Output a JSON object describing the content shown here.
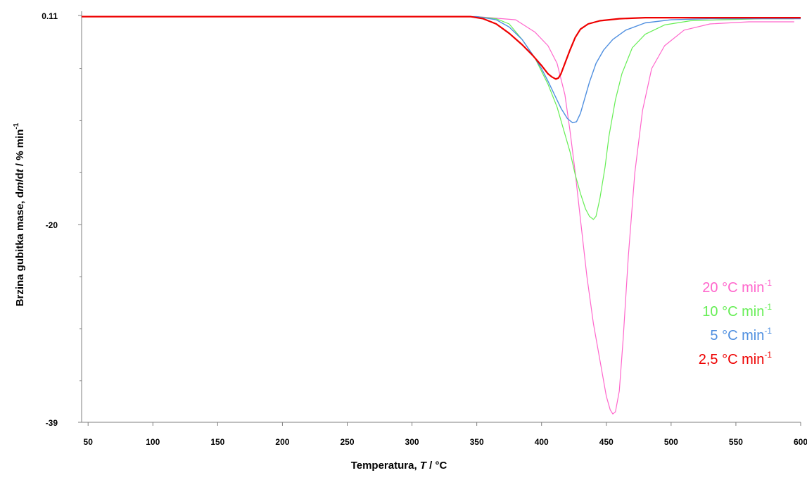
{
  "chart_data": {
    "type": "line",
    "xlabel": {
      "prefix": "Temperatura, ",
      "italic": "T",
      "suffix": " / °C"
    },
    "ylabel": {
      "prefix": "Brzina gubitka mase, d",
      "italic": "m",
      "middle": "/d",
      "italic2": "t",
      "suffix": " / % min",
      "sup": "-1"
    },
    "xlim": [
      45,
      600
    ],
    "ylim": [
      -39,
      0.11
    ],
    "x_ticks": [
      50,
      100,
      150,
      200,
      250,
      300,
      350,
      400,
      450,
      500,
      550,
      600
    ],
    "y_ticks": [
      {
        "value": 0.11,
        "label": "0.11"
      },
      {
        "value": -20,
        "label": "-20"
      },
      {
        "value": -39,
        "label": "-39"
      }
    ],
    "y_minor_ticks": [
      -5,
      -10,
      -15,
      -25,
      -30,
      -35
    ],
    "grid": false,
    "legend_position": "lower-right, inside plot",
    "series": [
      {
        "name": "20  °C min",
        "name_sup": "-1",
        "color": "#ff66cc",
        "stroke_width": 1.2,
        "x": [
          45,
          350,
          380,
          395,
          405,
          412,
          418,
          422,
          426,
          430,
          435,
          440,
          445,
          450,
          453,
          455,
          457,
          460,
          463,
          467,
          472,
          478,
          485,
          495,
          510,
          530,
          560,
          595
        ],
        "y": [
          0,
          0,
          -0.3,
          -1.5,
          -2.8,
          -4.5,
          -7.5,
          -11,
          -15,
          -19.5,
          -25,
          -29.5,
          -33,
          -36.5,
          -37.8,
          -38.2,
          -38,
          -36,
          -31,
          -23,
          -15,
          -9,
          -5,
          -2.8,
          -1.3,
          -0.7,
          -0.5,
          -0.5
        ]
      },
      {
        "name": "10  °C min",
        "name_sup": "-1",
        "color": "#66ee55",
        "stroke_width": 1.2,
        "x": [
          45,
          350,
          365,
          375,
          385,
          395,
          405,
          412,
          418,
          422,
          426,
          430,
          434,
          437,
          440,
          442,
          445,
          449,
          452,
          457,
          462,
          470,
          480,
          495,
          515,
          540,
          570,
          595
        ],
        "y": [
          0,
          0,
          -0.2,
          -0.7,
          -2.2,
          -4,
          -6.5,
          -8.7,
          -11.3,
          -13,
          -15.2,
          -17,
          -18.5,
          -19.2,
          -19.5,
          -19.2,
          -17.5,
          -14.5,
          -11.5,
          -8,
          -5.5,
          -3,
          -1.7,
          -0.8,
          -0.4,
          -0.3,
          -0.2,
          -0.2
        ]
      },
      {
        "name": "5  °C min",
        "name_sup": "-1",
        "color": "#4f8fe0",
        "stroke_width": 1.4,
        "x": [
          45,
          350,
          365,
          375,
          385,
          395,
          400,
          405,
          410,
          415,
          420,
          424,
          427,
          430,
          433,
          437,
          442,
          448,
          455,
          465,
          480,
          500,
          530,
          560,
          600
        ],
        "y": [
          0,
          0,
          -0.3,
          -1,
          -2.2,
          -4,
          -5,
          -6.2,
          -7.5,
          -8.8,
          -9.8,
          -10.2,
          -10.1,
          -9.3,
          -8,
          -6.3,
          -4.5,
          -3.2,
          -2.2,
          -1.3,
          -0.6,
          -0.3,
          -0.2,
          -0.2,
          -0.2
        ]
      },
      {
        "name": "2,5 °C min",
        "name_sup": "-1",
        "color": "#ee0000",
        "stroke_width": 2.2,
        "x": [
          45,
          345,
          355,
          365,
          375,
          385,
          393,
          400,
          405,
          408,
          411,
          413,
          415,
          418,
          422,
          426,
          430,
          436,
          445,
          460,
          480,
          520,
          560,
          600
        ],
        "y": [
          0,
          0,
          -0.2,
          -0.7,
          -1.6,
          -2.7,
          -3.7,
          -4.7,
          -5.5,
          -5.8,
          -6,
          -5.9,
          -5.5,
          -4.5,
          -3.2,
          -2,
          -1.2,
          -0.7,
          -0.4,
          -0.2,
          -0.1,
          -0.1,
          -0.1,
          -0.1
        ]
      }
    ]
  }
}
